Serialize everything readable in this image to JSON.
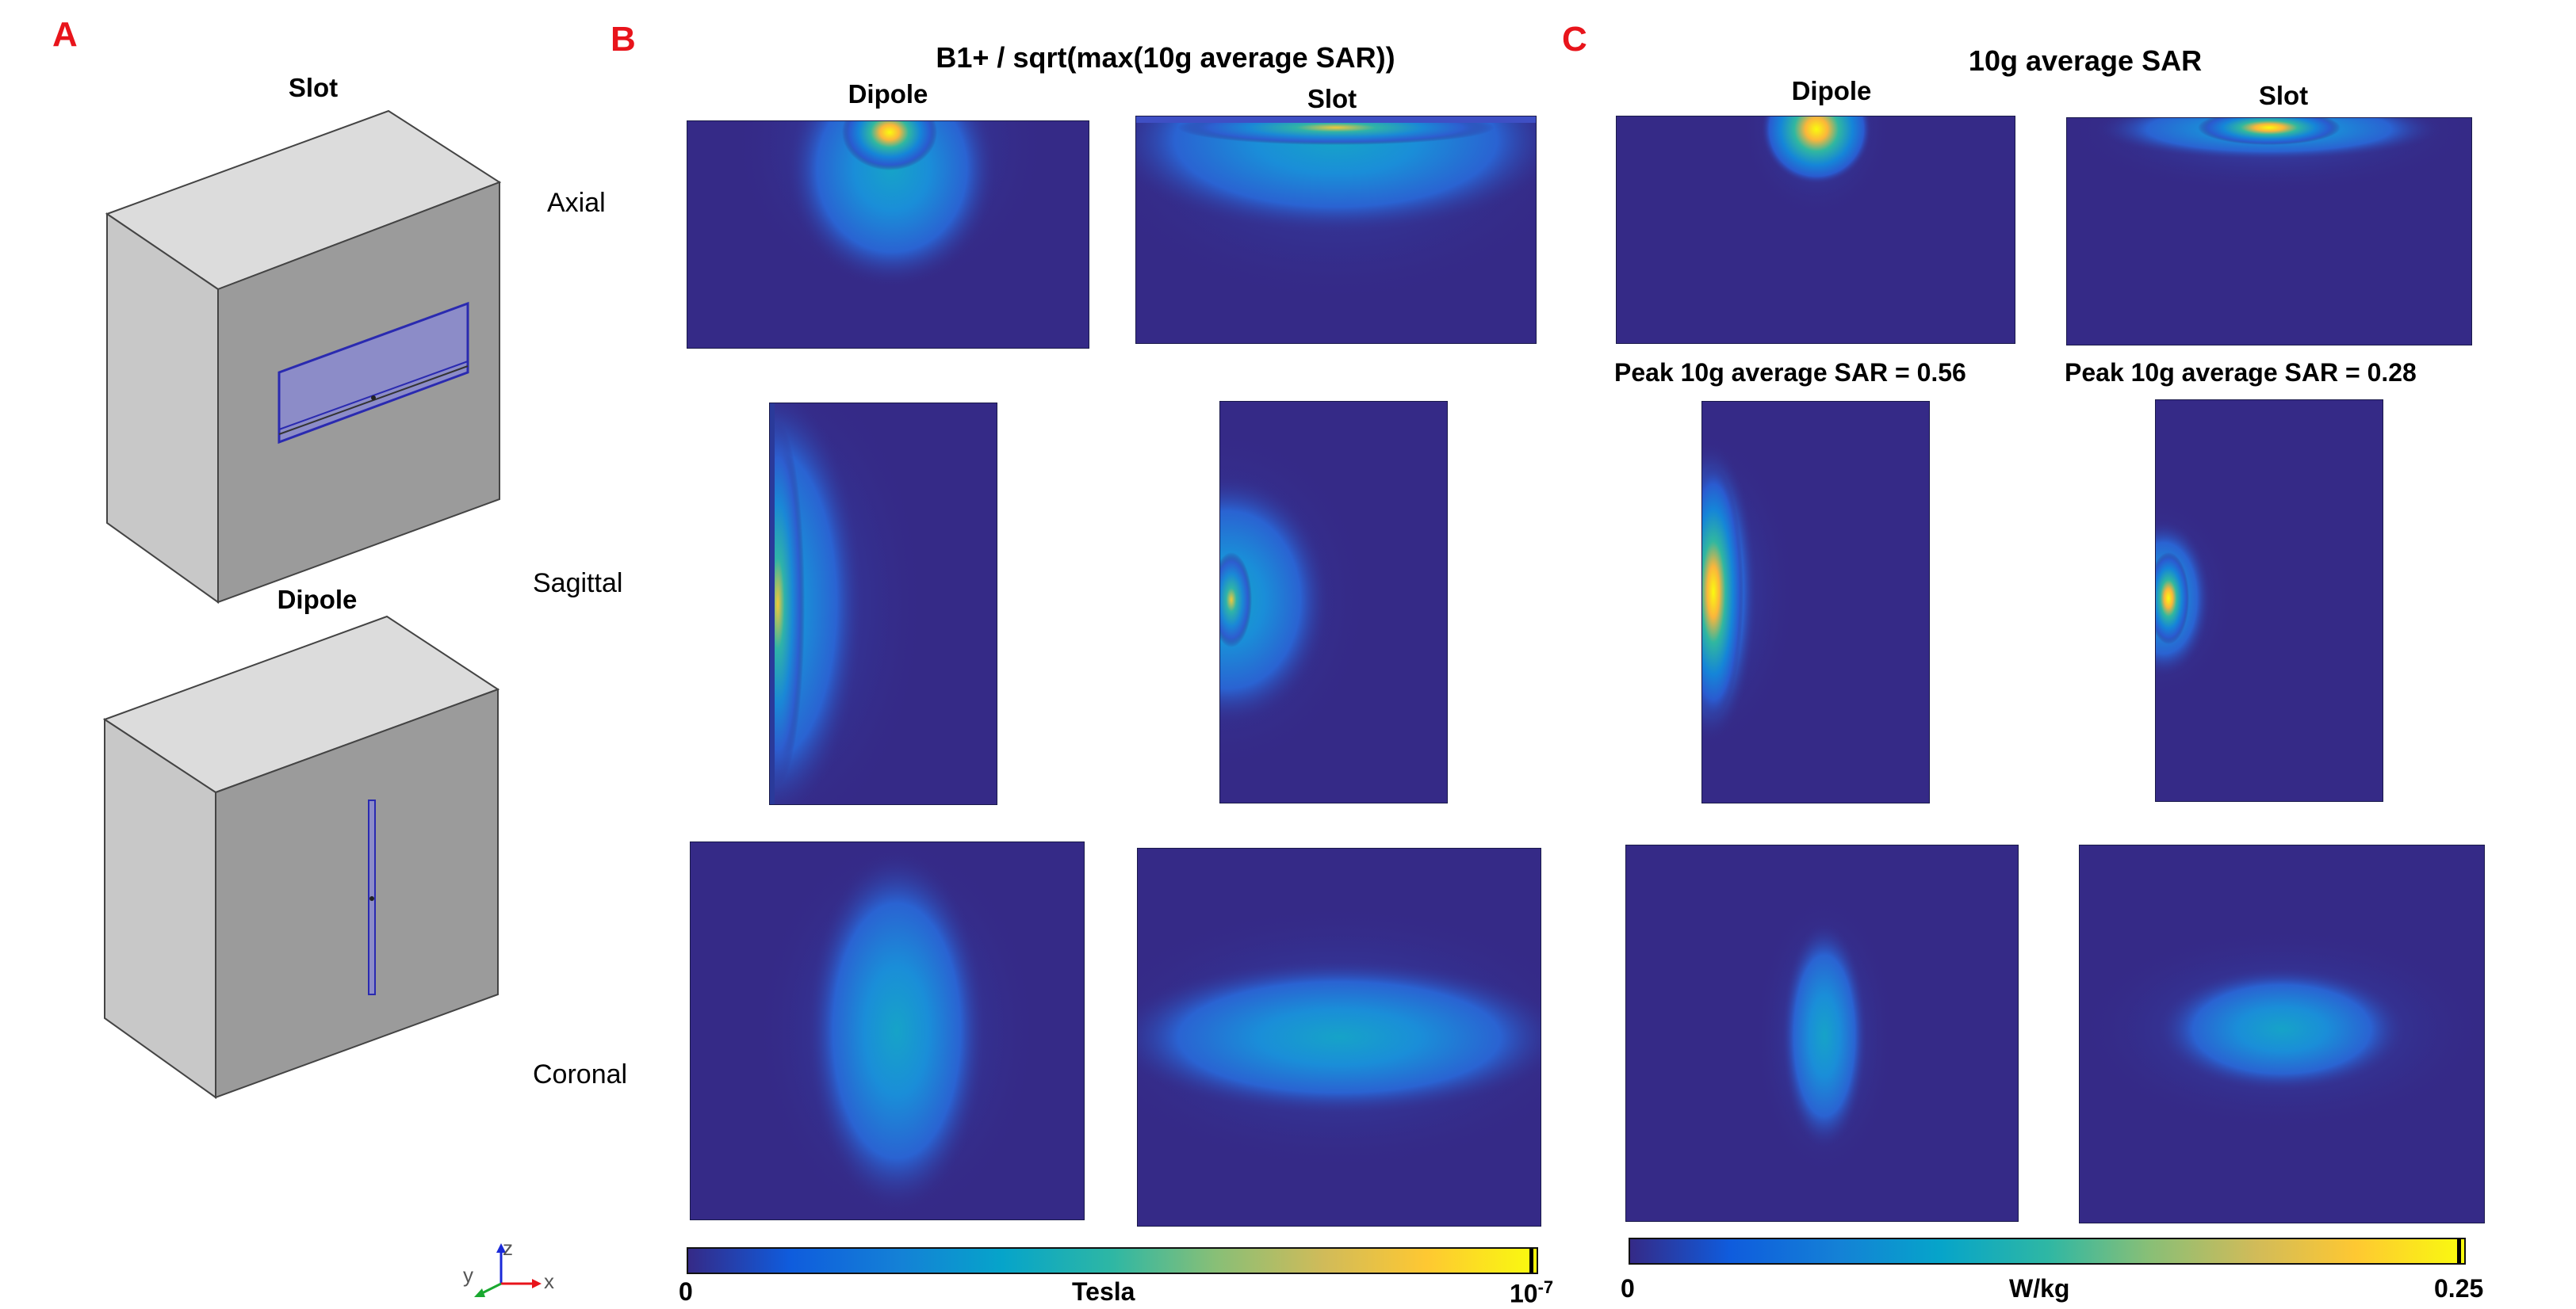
{
  "colors": {
    "panel_letter": "#e8141b",
    "map_background": "#352a87",
    "colormap": "parula"
  },
  "panel_a": {
    "letter": "A",
    "slot_label": "Slot",
    "dipole_label": "Dipole",
    "axes": {
      "x": "x",
      "y": "y",
      "z": "z"
    }
  },
  "panel_b": {
    "letter": "B",
    "title": "B1+ / sqrt(max(10g average SAR))",
    "col_dipole": "Dipole",
    "col_slot": "Slot",
    "colorbar": {
      "min": "0",
      "max": "10",
      "max_exponent": "-7",
      "unit": "Tesla"
    }
  },
  "panel_c": {
    "letter": "C",
    "title": "10g average SAR",
    "col_dipole": "Dipole",
    "col_slot": "Slot",
    "peak_dipole": "Peak 10g average SAR = 0.56",
    "peak_slot": "Peak 10g average SAR = 0.28",
    "colorbar": {
      "min": "0",
      "max": "0.25",
      "unit": "W/kg"
    }
  },
  "rows": {
    "axial": "Axial",
    "sagittal": "Sagittal",
    "coronal": "Coronal"
  }
}
